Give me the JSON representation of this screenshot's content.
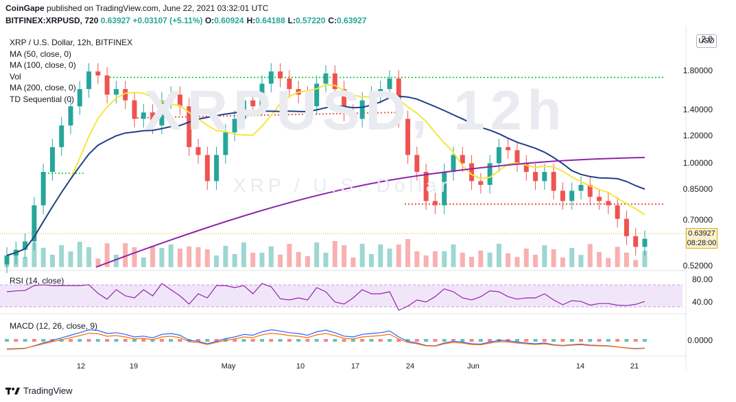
{
  "header": {
    "publisher": "CoinGape",
    "published_text": "published on TradingView.com, June 22, 2021 03:32:01 UTC",
    "symbol_code": "BITFINEX:XRPUSD, 720",
    "change": "0.63927 +0.03107 (+5.11%)",
    "ohlc": [
      {
        "label": "O:",
        "value": "0.60924"
      },
      {
        "label": "H:",
        "value": "0.64188"
      },
      {
        "label": "L:",
        "value": "0.57220"
      },
      {
        "label": "C:",
        "value": "0.63927"
      }
    ]
  },
  "legend": {
    "title": "XRP / U.S. Dollar, 12h, BITFINEX",
    "items": [
      "MA (50, close, 0)",
      "MA (100, close, 0)",
      "Vol",
      "MA (200, close, 0)",
      "TD Sequential (0)"
    ]
  },
  "watermark": {
    "main": "XRPUSD, 12h",
    "sub": "XRP / U.S. Dollar"
  },
  "price_axis": {
    "currency": "USD",
    "ticks": [
      {
        "label": "2.0",
        "value": 2.0
      },
      {
        "label": "1.80000",
        "value": 1.8
      },
      {
        "label": "1.40000",
        "value": 1.4
      },
      {
        "label": "1.20000",
        "value": 1.2
      },
      {
        "label": "1.00000",
        "value": 1.0
      },
      {
        "label": "0.85000",
        "value": 0.85
      },
      {
        "label": "0.70000",
        "value": 0.7
      },
      {
        "label": "0.52000",
        "value": 0.52
      }
    ],
    "last_price": "0.63927",
    "countdown": "08:28:00"
  },
  "rsi": {
    "label": "RSI (14, close)",
    "ticks": [
      "80.00",
      "40.00"
    ]
  },
  "macd": {
    "label": "MACD (12, 26, close, 9)",
    "ticks": [
      "0.0000"
    ]
  },
  "time_axis": {
    "ticks": [
      "12",
      "19",
      "May",
      "10",
      "17",
      "24",
      "Jun",
      "14",
      "21"
    ]
  },
  "footer": {
    "brand": "TradingView"
  },
  "colors": {
    "up": "#26a69a",
    "down": "#ef5350",
    "ma50": "#f5e63a",
    "ma100": "#1e3f8a",
    "ma200": "#8e24aa",
    "support": "#ef5350",
    "resistance": "#32d74b"
  },
  "chart_data": {
    "type": "line",
    "close_approx": [
      0.58,
      0.6,
      0.63,
      0.78,
      0.95,
      1.1,
      1.25,
      1.4,
      1.55,
      1.72,
      1.68,
      1.5,
      1.55,
      1.45,
      1.3,
      1.35,
      1.25,
      1.45,
      1.5,
      1.4,
      1.1,
      1.05,
      0.9,
      1.05,
      1.2,
      1.3,
      1.45,
      1.4,
      1.6,
      1.72,
      1.65,
      1.55,
      1.5,
      1.4,
      1.6,
      1.7,
      1.55,
      1.35,
      1.3,
      1.45,
      1.5,
      1.55,
      1.65,
      1.3,
      1.05,
      0.95,
      0.8,
      0.78,
      0.95,
      1.05,
      1.0,
      0.9,
      0.88,
      1.0,
      1.1,
      1.08,
      1.0,
      0.95,
      0.9,
      0.95,
      0.85,
      0.8,
      0.85,
      0.88,
      0.82,
      0.8,
      0.78,
      0.72,
      0.65,
      0.61,
      0.64
    ]
  }
}
